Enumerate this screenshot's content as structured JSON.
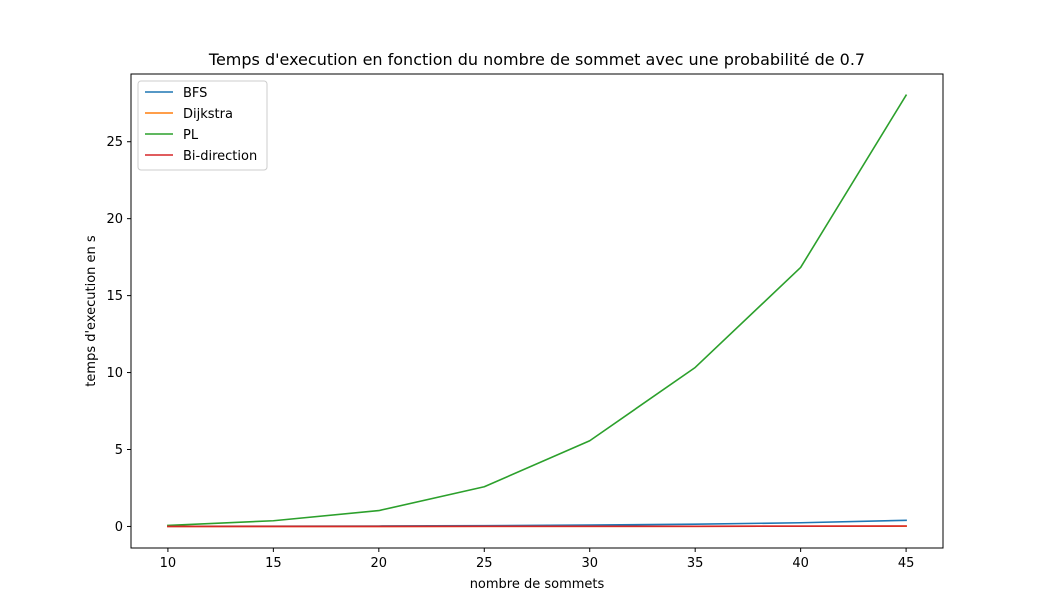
{
  "chart_data": {
    "type": "line",
    "title": "Temps d'execution en fonction du nombre de sommet avec une probabilité de 0.7",
    "xlabel": "nombre de sommets",
    "ylabel": "temps d'execution en s",
    "x": [
      10,
      15,
      20,
      25,
      30,
      35,
      40,
      45
    ],
    "xlim": [
      8.25,
      46.75
    ],
    "ylim": [
      -1.4,
      29.4
    ],
    "xticks": [
      10,
      15,
      20,
      25,
      30,
      35,
      40,
      45
    ],
    "yticks": [
      0,
      5,
      10,
      15,
      20,
      25
    ],
    "grid": false,
    "legend_position": "upper-left",
    "series": [
      {
        "name": "BFS",
        "color": "#1f77b4",
        "values": [
          0.01,
          0.02,
          0.03,
          0.05,
          0.09,
          0.15,
          0.24,
          0.4
        ]
      },
      {
        "name": "Dijkstra",
        "color": "#ff7f0e",
        "values": [
          0.0,
          0.0,
          0.0,
          0.01,
          0.01,
          0.01,
          0.02,
          0.02
        ]
      },
      {
        "name": "PL",
        "color": "#2ca02c",
        "values": [
          0.07,
          0.37,
          1.03,
          2.58,
          5.57,
          10.33,
          16.83,
          28.02
        ]
      },
      {
        "name": "Bi-direction",
        "color": "#d62728",
        "values": [
          0.0,
          0.0,
          0.0,
          0.01,
          0.01,
          0.01,
          0.02,
          0.03
        ]
      }
    ]
  }
}
